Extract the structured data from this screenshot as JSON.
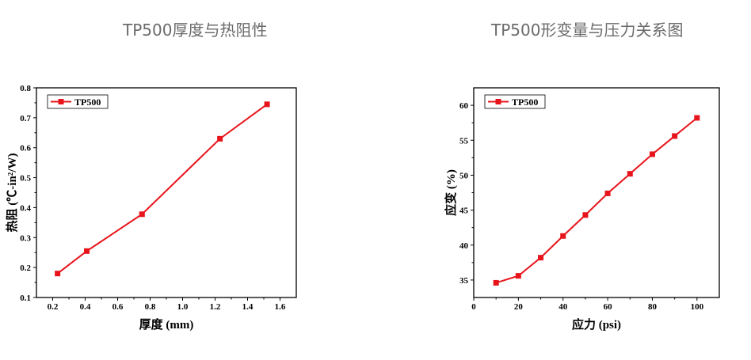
{
  "panels": {
    "left_title": "TP500厚度与热阻性",
    "right_title": "TP500形变量与压力关系图"
  },
  "colors": {
    "series": "#e8141b",
    "axis": "#000000"
  },
  "chart_data": [
    {
      "type": "line",
      "title": "TP500厚度与热阻性",
      "xlabel": "厚度 (mm)",
      "ylabel": "热阻 (℃-in²/W)",
      "xlim": [
        0.1,
        1.7
      ],
      "ylim": [
        0.1,
        0.8
      ],
      "xticks": [
        0.2,
        0.4,
        0.6,
        0.8,
        1.0,
        1.2,
        1.4,
        1.6
      ],
      "xtick_labels": [
        "0.2",
        "0.4",
        "0.6",
        "0.8",
        "1.0",
        "1.2",
        "1.4",
        "1.6"
      ],
      "yticks": [
        0.1,
        0.2,
        0.3,
        0.4,
        0.5,
        0.6,
        0.7,
        0.8
      ],
      "ytick_labels": [
        "0.1",
        "0.2",
        "0.3",
        "0.4",
        "0.5",
        "0.6",
        "0.7",
        "0.8"
      ],
      "legend": "top-left",
      "grid": false,
      "series": [
        {
          "name": "TP500",
          "x": [
            0.23,
            0.41,
            0.75,
            1.23,
            1.52
          ],
          "y": [
            0.18,
            0.255,
            0.378,
            0.63,
            0.745
          ]
        }
      ]
    },
    {
      "type": "line",
      "title": "TP500形变量与压力关系图",
      "xlabel": "应力 (psi)",
      "ylabel": "应变 (%)",
      "xlim": [
        0,
        110
      ],
      "ylim": [
        32.5,
        62.5
      ],
      "xticks": [
        0,
        20,
        40,
        60,
        80,
        100
      ],
      "xtick_labels": [
        "0",
        "20",
        "40",
        "60",
        "80",
        "100"
      ],
      "yticks": [
        35,
        40,
        45,
        50,
        55,
        60
      ],
      "ytick_labels": [
        "35",
        "40",
        "45",
        "50",
        "55",
        "60"
      ],
      "legend": "top-left",
      "grid": false,
      "series": [
        {
          "name": "TP500",
          "x": [
            10,
            20,
            30,
            40,
            50,
            60,
            70,
            80,
            90,
            100
          ],
          "y": [
            34.6,
            35.6,
            38.2,
            41.3,
            44.3,
            47.4,
            50.2,
            53.0,
            55.6,
            58.2
          ]
        }
      ]
    }
  ]
}
